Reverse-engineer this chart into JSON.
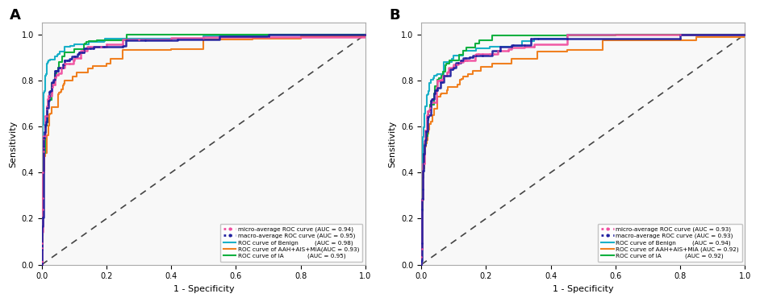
{
  "panel_A": {
    "label": "A",
    "legend_entries": [
      "micro-average ROC curve (AUC = 0.94)",
      "macro-average ROC curve (AUC = 0.95)",
      "ROC curve of Benign         (AUC = 0.98)",
      "ROC curve of AAH+AIS+MIA(AUC = 0.93)",
      "ROC curve of IA             (AUC = 0.95)"
    ]
  },
  "panel_B": {
    "label": "B",
    "legend_entries": [
      "micro-average ROC curve (AUC = 0.93)",
      "macro-average ROC curve (AUC = 0.93)",
      "ROC curve of Benign         (AUC = 0.94)",
      "ROC curve of AAH+AIS+MIA (AUC = 0.92)",
      "ROC curve of IA             (AUC = 0.92)"
    ]
  },
  "colors": {
    "micro": "#f050a0",
    "macro": "#2020a0",
    "benign": "#1ab0c8",
    "aah": "#f08020",
    "ia": "#10b040"
  },
  "xlabel": "1 - Specificity",
  "ylabel": "Sensitivity",
  "xlim": [
    0.0,
    1.0
  ],
  "ylim": [
    0.0,
    1.05
  ],
  "diagonal_color": "#444444"
}
